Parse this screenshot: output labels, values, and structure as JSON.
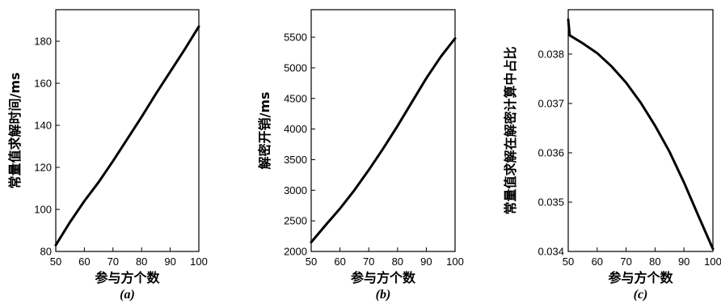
{
  "chart_data": [
    {
      "type": "line",
      "panel_label": "(a)",
      "xlabel": "参与方个数",
      "ylabel": "常量值求解时间/ms",
      "xlim": [
        50,
        100
      ],
      "ylim": [
        80,
        195
      ],
      "x_ticks": [
        "50",
        "60",
        "70",
        "80",
        "90",
        "100"
      ],
      "y_ticks": [
        "80",
        "100",
        "120",
        "140",
        "160",
        "180"
      ],
      "x_tick_values": [
        50,
        60,
        70,
        80,
        90,
        100
      ],
      "y_tick_values": [
        80,
        100,
        120,
        140,
        160,
        180
      ],
      "series": [
        {
          "x": [
            50,
            55,
            60,
            65,
            70,
            75,
            80,
            85,
            90,
            95,
            100
          ],
          "y": [
            83,
            94,
            104,
            113,
            123,
            133.5,
            144,
            155,
            165.5,
            176,
            187
          ]
        }
      ]
    },
    {
      "type": "line",
      "panel_label": "(b)",
      "xlabel": "参与方个数",
      "ylabel": "解密开销/ms",
      "xlim": [
        50,
        100
      ],
      "ylim": [
        2000,
        5950
      ],
      "x_ticks": [
        "50",
        "60",
        "70",
        "80",
        "90",
        "100"
      ],
      "y_ticks": [
        "2000",
        "2500",
        "3000",
        "3500",
        "4000",
        "4500",
        "5000",
        "5500"
      ],
      "x_tick_values": [
        50,
        60,
        70,
        80,
        90,
        100
      ],
      "y_tick_values": [
        2000,
        2500,
        3000,
        3500,
        4000,
        4500,
        5000,
        5500
      ],
      "series": [
        {
          "x": [
            50,
            55,
            60,
            65,
            70,
            75,
            80,
            85,
            90,
            95,
            99,
            100
          ],
          "y": [
            2150,
            2430,
            2700,
            3000,
            3330,
            3680,
            4050,
            4440,
            4830,
            5180,
            5420,
            5480
          ]
        }
      ]
    },
    {
      "type": "line",
      "panel_label": "(c)",
      "xlabel": "参与方个数",
      "ylabel": "常量值求解在解密计算中占比",
      "xlim": [
        50,
        100
      ],
      "ylim": [
        0.034,
        0.0389
      ],
      "x_ticks": [
        "50",
        "60",
        "70",
        "80",
        "90",
        "100"
      ],
      "y_ticks": [
        "0.034",
        "0.035",
        "0.036",
        "0.037",
        "0.038"
      ],
      "x_tick_values": [
        50,
        60,
        70,
        80,
        90,
        100
      ],
      "y_tick_values": [
        0.034,
        0.035,
        0.036,
        0.037,
        0.038
      ],
      "series": [
        {
          "x": [
            50,
            50.5,
            55,
            60,
            65,
            70,
            75,
            80,
            85,
            90,
            95,
            100
          ],
          "y": [
            0.0387,
            0.03838,
            0.03822,
            0.03802,
            0.03775,
            0.03742,
            0.03702,
            0.03655,
            0.03602,
            0.0354,
            0.03472,
            0.03405
          ]
        }
      ]
    }
  ]
}
